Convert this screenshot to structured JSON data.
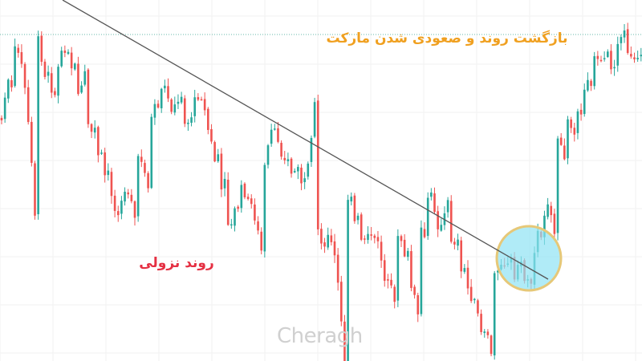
{
  "annotations": {
    "uptrend_label": "بازگشت روند و صعودی شدن مارکت",
    "downtrend_label": "روند نزولی"
  },
  "watermark": {
    "text": "Cheragh"
  },
  "colors": {
    "bull": "#26a69a",
    "bear": "#ef5350",
    "trendline": "#555555",
    "highlight_fill": "#8fe3f3",
    "highlight_stroke": "#e6c878",
    "uptrend_label": "#f0a020",
    "downtrend_label": "#e53043",
    "grid": "#f2f2f2",
    "level_line": "#66b8a8"
  },
  "chart_data": {
    "type": "candlestick",
    "title": "",
    "xlabel": "",
    "ylabel": "",
    "grid": true,
    "ylim": [
      0,
      450
    ],
    "anchors": [
      [
        0,
        150
      ],
      [
        6,
        140
      ],
      [
        13,
        110
      ],
      [
        20,
        75
      ],
      [
        28,
        40
      ],
      [
        34,
        12
      ],
      [
        40,
        2
      ],
      [
        46,
        30
      ],
      [
        54,
        60
      ],
      [
        62,
        100
      ],
      [
        70,
        110
      ],
      [
        78,
        80
      ],
      [
        86,
        55
      ],
      [
        92,
        85
      ],
      [
        100,
        120
      ],
      [
        110,
        150
      ],
      [
        120,
        175
      ],
      [
        130,
        200
      ],
      [
        140,
        235
      ],
      [
        150,
        265
      ],
      [
        160,
        240
      ],
      [
        168,
        215
      ],
      [
        178,
        190
      ],
      [
        188,
        165
      ],
      [
        196,
        140
      ],
      [
        204,
        115
      ],
      [
        212,
        125
      ],
      [
        220,
        135
      ],
      [
        230,
        140
      ],
      [
        238,
        160
      ],
      [
        246,
        130
      ],
      [
        254,
        110
      ],
      [
        262,
        155
      ],
      [
        270,
        190
      ],
      [
        278,
        235
      ],
      [
        286,
        265
      ],
      [
        292,
        290
      ],
      [
        298,
        255
      ],
      [
        306,
        235
      ],
      [
        314,
        245
      ],
      [
        322,
        270
      ],
      [
        330,
        230
      ],
      [
        336,
        200
      ],
      [
        342,
        165
      ],
      [
        350,
        170
      ],
      [
        358,
        200
      ],
      [
        366,
        215
      ],
      [
        374,
        215
      ],
      [
        382,
        240
      ],
      [
        390,
        265
      ],
      [
        398,
        280
      ],
      [
        406,
        300
      ],
      [
        414,
        290
      ],
      [
        420,
        265
      ],
      [
        426,
        235
      ],
      [
        432,
        215
      ],
      [
        438,
        245
      ],
      [
        444,
        270
      ],
      [
        452,
        300
      ],
      [
        460,
        305
      ],
      [
        468,
        285
      ],
      [
        476,
        300
      ],
      [
        482,
        350
      ],
      [
        490,
        330
      ],
      [
        498,
        300
      ],
      [
        504,
        300
      ],
      [
        510,
        335
      ],
      [
        516,
        355
      ],
      [
        522,
        330
      ],
      [
        530,
        280
      ],
      [
        538,
        245
      ],
      [
        546,
        260
      ],
      [
        552,
        295
      ],
      [
        558,
        320
      ],
      [
        564,
        300
      ],
      [
        570,
        295
      ],
      [
        576,
        340
      ],
      [
        582,
        350
      ],
      [
        590,
        365
      ],
      [
        598,
        385
      ],
      [
        606,
        430
      ],
      [
        612,
        400
      ],
      [
        618,
        350
      ],
      [
        624,
        335
      ],
      [
        630,
        320
      ],
      [
        636,
        330
      ],
      [
        642,
        345
      ],
      [
        650,
        335
      ],
      [
        656,
        350
      ],
      [
        662,
        345
      ],
      [
        670,
        310
      ],
      [
        676,
        285
      ],
      [
        682,
        265
      ],
      [
        688,
        245
      ],
      [
        694,
        210
      ],
      [
        698,
        175
      ],
      [
        702,
        160
      ],
      [
        708,
        140
      ],
      [
        714,
        150
      ],
      [
        720,
        160
      ],
      [
        726,
        140
      ],
      [
        732,
        110
      ],
      [
        738,
        90
      ],
      [
        744,
        70
      ],
      [
        752,
        65
      ],
      [
        760,
        80
      ],
      [
        768,
        85
      ],
      [
        776,
        45
      ],
      [
        782,
        65
      ],
      [
        790,
        60
      ],
      [
        800,
        75
      ]
    ],
    "trendline": {
      "from": [
        78,
        0
      ],
      "to": [
        683,
        348
      ]
    },
    "level_line": {
      "y": 43
    },
    "highlight": {
      "center": [
        659,
        322
      ],
      "radius": 40
    }
  }
}
